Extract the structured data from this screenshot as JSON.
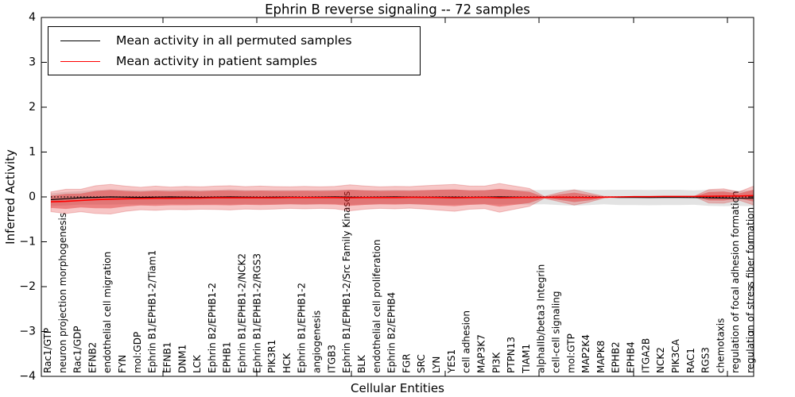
{
  "title": "Ephrin B reverse signaling -- 72 samples",
  "axes": {
    "xlabel": "Cellular Entities",
    "ylabel": "Inferred Activity",
    "ytick_labels": [
      "4",
      "3",
      "2",
      "1",
      "0",
      "−1",
      "−2",
      "−3",
      "−4"
    ]
  },
  "legend": {
    "position": "upper left",
    "items": [
      {
        "label": "Mean activity in all permuted samples",
        "color": "#000000"
      },
      {
        "label": "Mean activity in patient samples",
        "color": "#ff0000"
      }
    ]
  },
  "chart_data": {
    "type": "line",
    "title": "Ephrin B reverse signaling -- 72 samples",
    "xlabel": "Cellular Entities",
    "ylabel": "Inferred Activity",
    "ylim": [
      -4,
      4
    ],
    "yticks": [
      4,
      3,
      2,
      1,
      0,
      -1,
      -2,
      -3,
      -4
    ],
    "grid": false,
    "legend_position": "upper left",
    "categories": [
      "Rac1/GTP",
      "neuron projection morphogenesis",
      "Rac1/GDP",
      "EFNB2",
      "endothelial cell migration",
      "FYN",
      "mol:GDP",
      "Ephrin B1/EPHB1-2/Tiam1",
      "EFNB1",
      "DNM1",
      "LCK",
      "Ephrin B2/EPHB1-2",
      "EPHB1",
      "Ephrin B1/EPHB1-2/NCK2",
      "Ephrin B1/EPHB1-2/RGS3",
      "PIK3R1",
      "HCK",
      "Ephrin B1/EPHB1-2",
      "angiogenesis",
      "ITGB3",
      "Ephrin B1/EPHB1-2/Src Family Kinases",
      "BLK",
      "endothelial cell proliferation",
      "Ephrin B2/EPHB4",
      "FGR",
      "SRC",
      "LYN",
      "YES1",
      "cell adhesion",
      "MAP3K7",
      "PI3K",
      "PTPN13",
      "TIAM1",
      "alphaIIb/beta3 Integrin",
      "cell-cell signaling",
      "mol:GTP",
      "MAP2K4",
      "MAPK8",
      "EPHB2",
      "EPHB4",
      "ITGA2B",
      "NCK2",
      "PIK3CA",
      "RAC1",
      "RGS3",
      "chemotaxis",
      "regulation of focal adhesion formation",
      "regulation of stress fiber formation"
    ],
    "series": [
      {
        "name": "Mean activity in all permuted samples",
        "color": "#000000",
        "style": "solid",
        "values": [
          -0.06,
          -0.04,
          -0.02,
          -0.01,
          0,
          -0.005,
          -0.01,
          -0.005,
          0,
          -0.005,
          -0.01,
          -0.005,
          0,
          -0.005,
          -0.01,
          -0.005,
          -0.005,
          -0.01,
          -0.005,
          0,
          -0.005,
          -0.01,
          -0.005,
          0,
          -0.005,
          -0.01,
          -0.005,
          -0.005,
          -0.01,
          -0.005,
          0,
          -0.005,
          -0.01,
          -0.005,
          -0.01,
          -0.015,
          -0.01,
          -0.005,
          -0.01,
          -0.01,
          -0.015,
          -0.01,
          -0.01,
          -0.015,
          -0.02,
          -0.025,
          -0.03,
          -0.03
        ]
      },
      {
        "name": "Mean activity in patient samples",
        "color": "#ff0000",
        "style": "solid",
        "values": [
          -0.11,
          -0.1,
          -0.08,
          -0.06,
          -0.05,
          -0.04,
          -0.035,
          -0.03,
          -0.03,
          -0.025,
          -0.025,
          -0.02,
          -0.02,
          -0.02,
          -0.02,
          -0.02,
          -0.015,
          -0.015,
          -0.015,
          -0.015,
          -0.02,
          -0.015,
          -0.015,
          -0.015,
          -0.01,
          -0.01,
          -0.015,
          -0.02,
          -0.015,
          -0.01,
          -0.02,
          -0.015,
          -0.01,
          -0.01,
          -0.005,
          -0.01,
          -0.015,
          -0.005,
          0,
          0.005,
          0.005,
          0.01,
          0.01,
          0.01,
          0.015,
          0.02,
          0.02,
          0.03
        ]
      },
      {
        "name": "Zero reference",
        "color": "#000000",
        "style": "dotted",
        "value": 0
      }
    ],
    "bands": [
      {
        "name": "permuted samples spread",
        "color": "rgba(0,0,0,0.11)",
        "center_series": 0,
        "half_widths": [
          0.14,
          0.15,
          0.15,
          0.16,
          0.17,
          0.16,
          0.16,
          0.16,
          0.16,
          0.16,
          0.16,
          0.16,
          0.17,
          0.16,
          0.16,
          0.16,
          0.16,
          0.16,
          0.16,
          0.16,
          0.17,
          0.16,
          0.16,
          0.16,
          0.16,
          0.16,
          0.17,
          0.17,
          0.16,
          0.16,
          0.17,
          0.16,
          0.16,
          0.16,
          0.17,
          0.18,
          0.17,
          0.16,
          0.17,
          0.17,
          0.17,
          0.17,
          0.17,
          0.16,
          0.18,
          0.18,
          0.17,
          0.18
        ]
      },
      {
        "name": "patient samples spread (outer)",
        "color": "rgba(225,35,35,0.26)",
        "center_series": 1,
        "half_widths": [
          0.22,
          0.27,
          0.25,
          0.31,
          0.33,
          0.28,
          0.25,
          0.27,
          0.25,
          0.26,
          0.25,
          0.26,
          0.27,
          0.25,
          0.26,
          0.25,
          0.24,
          0.25,
          0.24,
          0.25,
          0.29,
          0.26,
          0.24,
          0.25,
          0.24,
          0.26,
          0.28,
          0.3,
          0.26,
          0.25,
          0.32,
          0.26,
          0.2,
          0.02,
          0.1,
          0.17,
          0.1,
          0.02,
          0,
          0,
          0,
          0,
          0,
          0,
          0.15,
          0.16,
          0.09,
          0.21
        ]
      },
      {
        "name": "patient samples spread (inner)",
        "color": "rgba(225,35,35,0.42)",
        "center_series": 1,
        "ratio_of_outer": 0.62
      }
    ]
  }
}
